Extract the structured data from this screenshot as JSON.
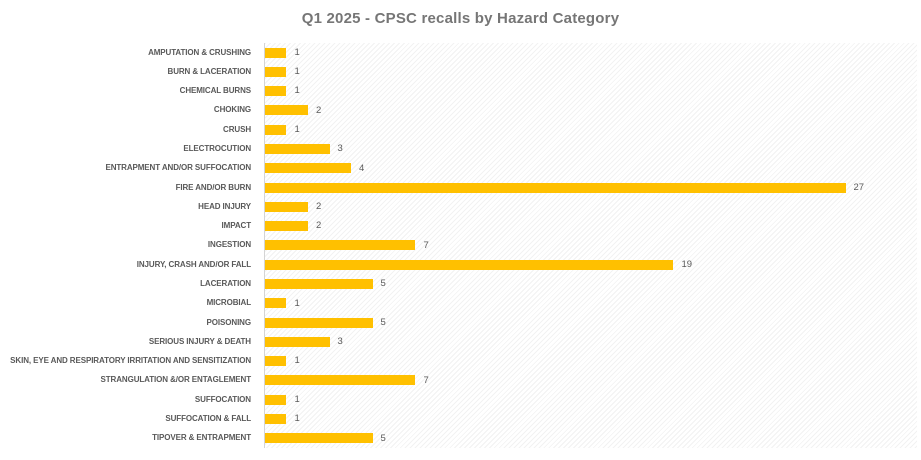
{
  "title": "Q1 2025 - CPSC recalls by Hazard Category",
  "colors": {
    "bar": "#FFC000",
    "title_text": "#767676",
    "category_label_text": "#595959",
    "value_label_text": "#595959",
    "axis_line": "#d4d4d4"
  },
  "chart_data": {
    "type": "bar",
    "orientation": "horizontal",
    "title": "Q1 2025 - CPSC recalls by Hazard Category",
    "xlabel": "",
    "ylabel": "",
    "xlim": [
      0,
      30
    ],
    "grid": false,
    "legend": false,
    "value_labels_shown": true,
    "plot_background": "diagonal-hatch",
    "categories": [
      "AMPUTATION & CRUSHING",
      "BURN & LACERATION",
      "CHEMICAL BURNS",
      "CHOKING",
      "CRUSH",
      "ELECTROCUTION",
      "ENTRAPMENT AND/OR SUFFOCATION",
      "FIRE AND/OR BURN",
      "HEAD INJURY",
      "IMPACT",
      "INGESTION",
      "INJURY, CRASH AND/OR FALL",
      "LACERATION",
      "MICROBIAL",
      "POISONING",
      "SERIOUS INJURY & DEATH",
      "SKIN, EYE AND RESPIRATORY IRRITATION AND SENSITIZATION",
      "STRANGULATION &/OR ENTAGLEMENT",
      "SUFFOCATION",
      "SUFFOCATION & FALL",
      "TIPOVER & ENTRAPMENT"
    ],
    "values": [
      1,
      1,
      1,
      2,
      1,
      3,
      4,
      27,
      2,
      2,
      7,
      19,
      5,
      1,
      5,
      3,
      1,
      7,
      1,
      1,
      5
    ]
  }
}
